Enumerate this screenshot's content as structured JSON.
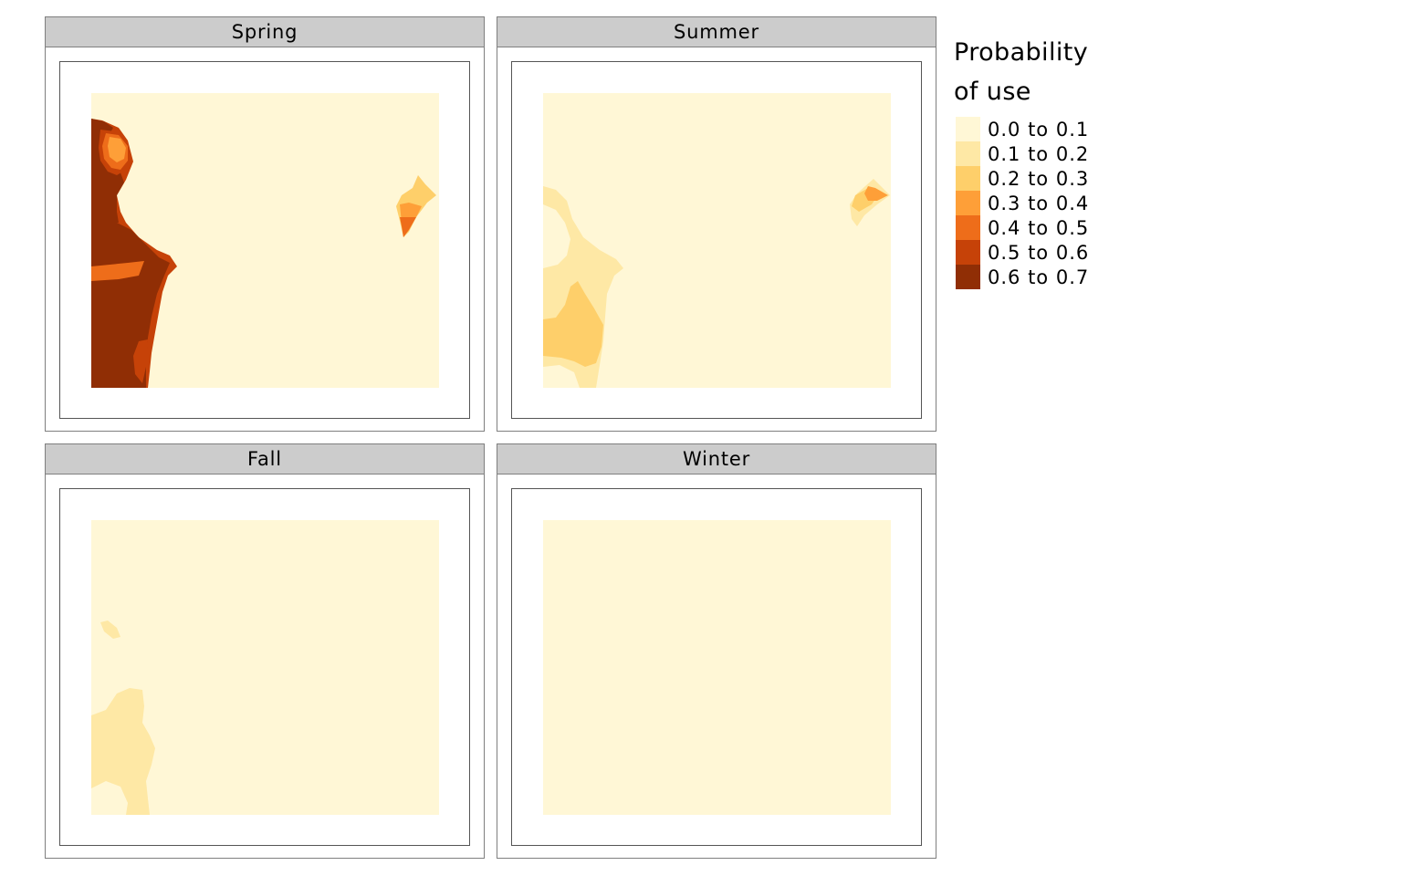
{
  "panels": [
    {
      "title": "Spring"
    },
    {
      "title": "Summer"
    },
    {
      "title": "Fall"
    },
    {
      "title": "Winter"
    }
  ],
  "legend": {
    "title_line1": "Probability",
    "title_line2": "of use",
    "items": [
      {
        "label": "0.0 to 0.1",
        "color": "#FFF7D6"
      },
      {
        "label": "0.1 to 0.2",
        "color": "#FEE8A5"
      },
      {
        "label": "0.2 to 0.3",
        "color": "#FECF6A"
      },
      {
        "label": "0.3 to 0.4",
        "color": "#FE9F38"
      },
      {
        "label": "0.4 to 0.5",
        "color": "#EE6D1A"
      },
      {
        "label": "0.5 to 0.6",
        "color": "#C64208"
      },
      {
        "label": "0.6 to 0.7",
        "color": "#902E05"
      }
    ]
  }
}
